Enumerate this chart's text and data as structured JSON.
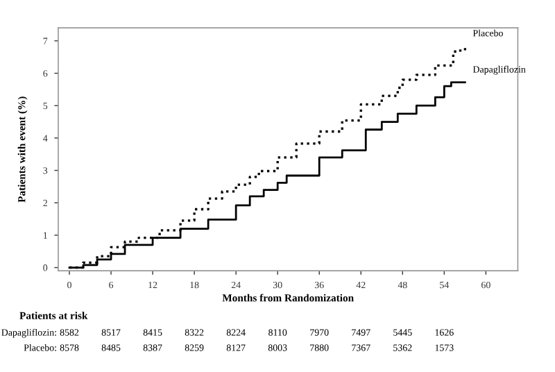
{
  "chart_data": {
    "type": "step",
    "xlabel": "Months from Randomization",
    "ylabel": "Patients with event (%)",
    "xlim": [
      -1.6,
      64.6
    ],
    "ylim": [
      -0.1,
      7.4
    ],
    "xticks": [
      0,
      6,
      12,
      18,
      24,
      30,
      36,
      42,
      48,
      54,
      60
    ],
    "yticks": [
      0,
      1,
      2,
      3,
      4,
      5,
      6,
      7
    ],
    "grid": false,
    "legend": false,
    "series": [
      {
        "name": "Placebo",
        "color": "#000000",
        "line_style": "dotted",
        "x": [
          0,
          2,
          4,
          6,
          8,
          10,
          13,
          16,
          18,
          20,
          22,
          24,
          26,
          27.3,
          30,
          32.7,
          36,
          39.3,
          42,
          45,
          47.3,
          48,
          50,
          52.7,
          55.3,
          56,
          57
        ],
        "values": [
          0,
          0.15,
          0.35,
          0.63,
          0.8,
          0.92,
          1.15,
          1.45,
          1.8,
          2.13,
          2.35,
          2.56,
          2.8,
          2.98,
          3.4,
          3.83,
          4.2,
          4.54,
          5.04,
          5.3,
          5.55,
          5.8,
          5.95,
          6.24,
          6.67,
          6.7,
          6.84
        ]
      },
      {
        "name": "Dapagliflozin",
        "color": "#000000",
        "line_style": "solid",
        "x": [
          0,
          2,
          4,
          6,
          8,
          10,
          12,
          16,
          20,
          24,
          26,
          28,
          30,
          31.3,
          36,
          39.3,
          42.7,
          45,
          47.3,
          50,
          52.7,
          54,
          55,
          57
        ],
        "values": [
          0,
          0.08,
          0.25,
          0.42,
          0.7,
          0.7,
          0.92,
          1.2,
          1.48,
          1.92,
          2.2,
          2.4,
          2.62,
          2.84,
          3.4,
          3.62,
          4.26,
          4.5,
          4.75,
          5.0,
          5.26,
          5.6,
          5.72,
          5.72
        ]
      }
    ],
    "annotations": [
      "Patients at risk",
      "Dapagliflozin:",
      "8582",
      "8517",
      "8415",
      "8322",
      "8224",
      "8110",
      "7970",
      "7497",
      "5445",
      "1626",
      "Placebo:",
      "8578",
      "8485",
      "8387",
      "8259",
      "8127",
      "8003",
      "7880",
      "7367",
      "5362",
      "1573"
    ]
  }
}
